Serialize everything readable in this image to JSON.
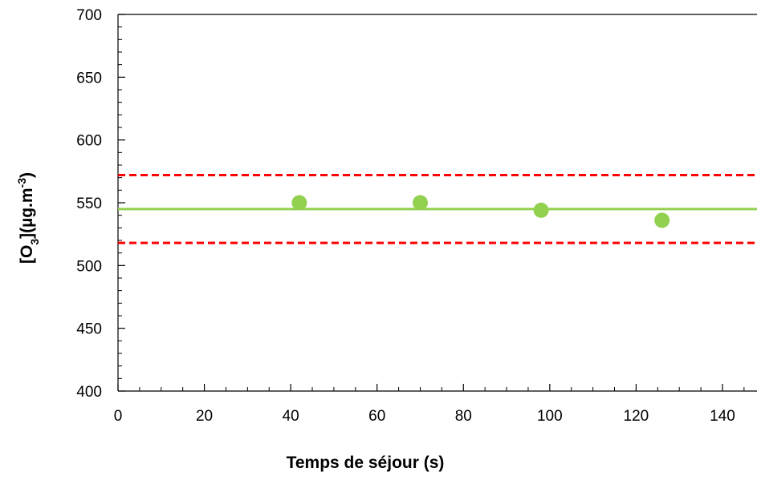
{
  "chart_data": {
    "type": "scatter",
    "title": "",
    "xlabel": "Temps de séjour (s)",
    "ylabel": "[O3](µg.m-3)",
    "ylabel_parts": {
      "open": "[O",
      "sub": "3",
      "mid": "](µg.m",
      "sup": "-3",
      "close": ")"
    },
    "xlim": [
      0,
      148
    ],
    "ylim": [
      400,
      700
    ],
    "x_ticks": [
      0,
      20,
      40,
      60,
      80,
      100,
      120,
      140
    ],
    "y_ticks": [
      400,
      450,
      500,
      550,
      600,
      650,
      700
    ],
    "x_tick_labels": [
      "0",
      "20",
      "40",
      "60",
      "80",
      "100",
      "120",
      "140"
    ],
    "y_tick_labels": [
      "400",
      "450",
      "500",
      "550",
      "600",
      "650",
      "700"
    ],
    "x_minor_step": 5,
    "y_minor_step": 10,
    "grid": false,
    "series": [
      {
        "kind": "points",
        "color": "#92d050",
        "points": [
          {
            "x": 42,
            "y": 550
          },
          {
            "x": 70,
            "y": 550
          },
          {
            "x": 98,
            "y": 544
          },
          {
            "x": 126,
            "y": 536
          }
        ]
      },
      {
        "kind": "hline",
        "role": "mean",
        "y": 545,
        "color": "#92d050",
        "style": "solid"
      },
      {
        "kind": "hline",
        "role": "upper bound",
        "y": 572,
        "color": "#ff0000",
        "style": "dashed"
      },
      {
        "kind": "hline",
        "role": "lower bound",
        "y": 518,
        "color": "#ff0000",
        "style": "dashed"
      }
    ]
  }
}
